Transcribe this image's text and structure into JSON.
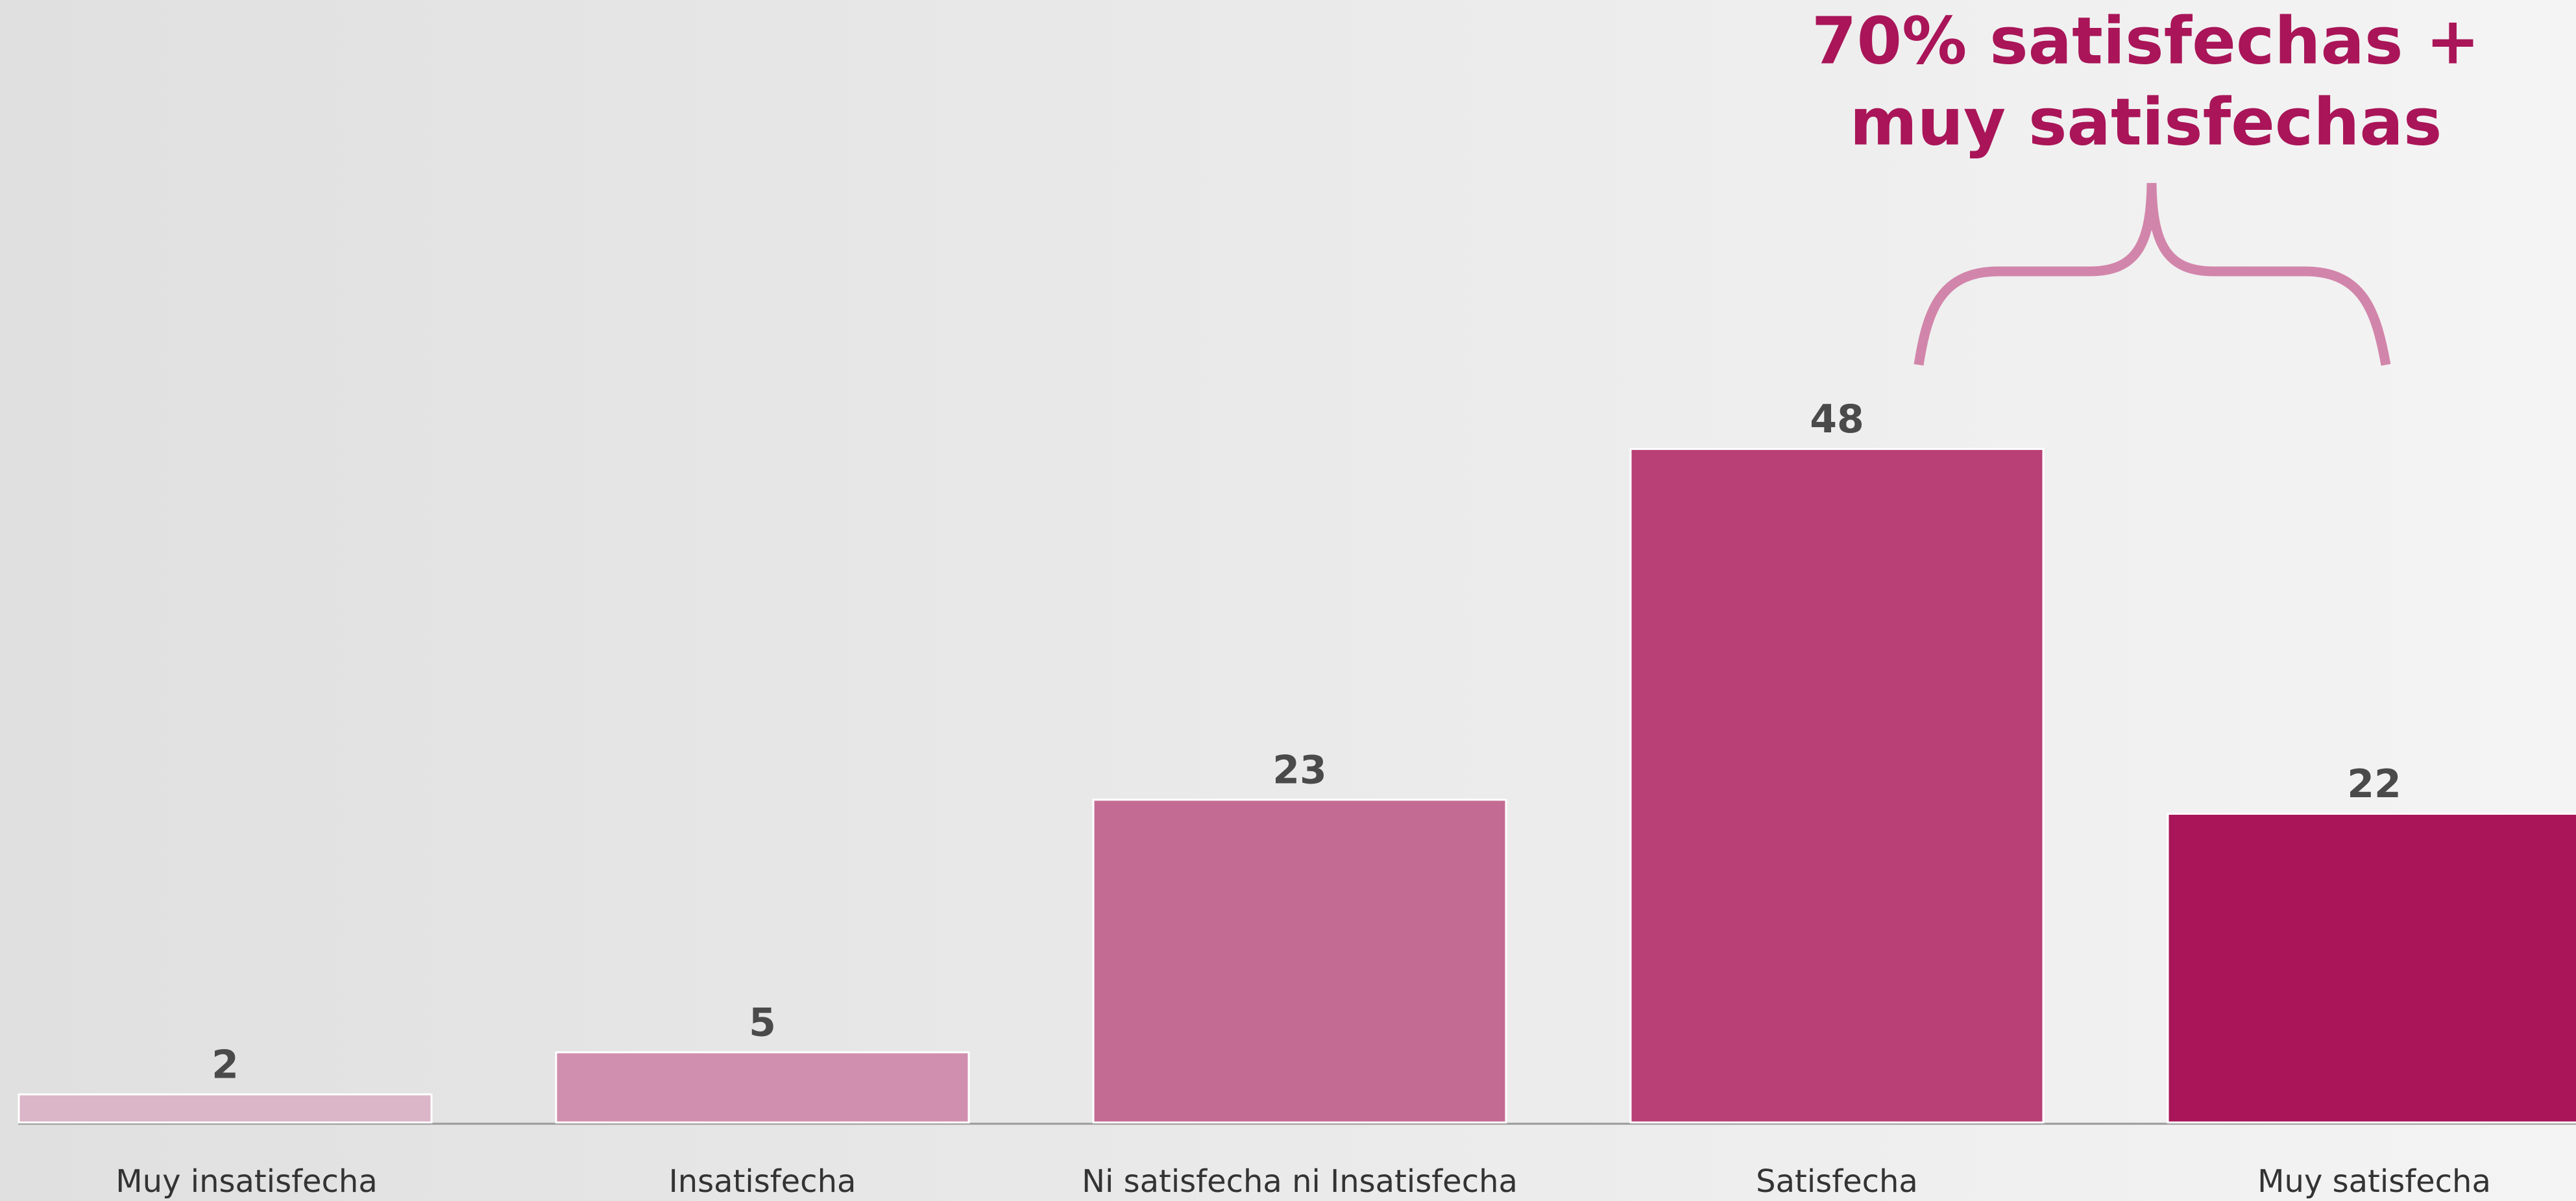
{
  "chart_data": {
    "type": "bar",
    "annotation": [
      "70% satisfechas +",
      "muy satisfechas"
    ],
    "categories": [
      "Muy insatisfecha",
      "Insatisfecha",
      "Ni satisfecha ni Insatisfecha",
      "Satisfecha",
      "Muy satisfecha"
    ],
    "values": [
      2,
      5,
      23,
      48,
      22
    ],
    "colors": [
      "#dbb5c8",
      "#d08fae",
      "#c46b94",
      "#b84077",
      "#a91558"
    ],
    "ylim": [
      0,
      80
    ]
  }
}
